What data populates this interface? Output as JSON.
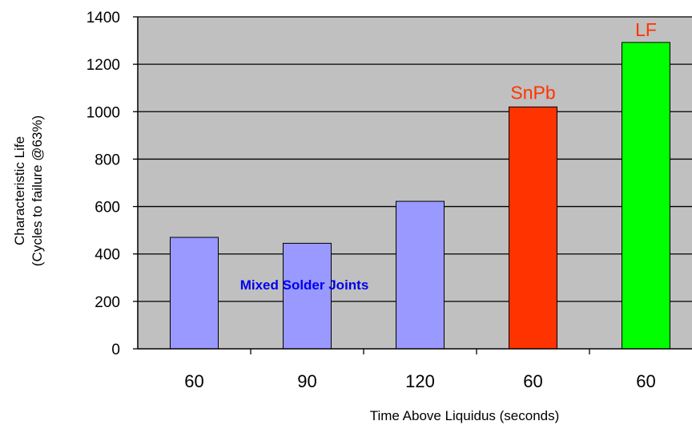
{
  "chart_data": {
    "type": "bar",
    "categories": [
      "60",
      "90",
      "120",
      "60",
      "60"
    ],
    "values": [
      470,
      445,
      622,
      1020,
      1292
    ],
    "colors": [
      "#9999ff",
      "#9999ff",
      "#9999ff",
      "#ff3300",
      "#00ff00"
    ],
    "xlabel": "Time Above Liquidus (seconds)",
    "ylabel_line1": "Characteristic Life",
    "ylabel_line2": "(Cycles to failure @63%)",
    "ylim": [
      0,
      1400
    ],
    "yticks": [
      0,
      200,
      400,
      600,
      800,
      1000,
      1200,
      1400
    ],
    "grid": true,
    "plot_background": "#c0c0c0",
    "annotations": [
      {
        "text": "Mixed Solder Joints",
        "color": "#0000ee",
        "bold": true
      },
      {
        "text": "SnPb",
        "color": "#ff3300",
        "bold": false
      },
      {
        "text": "LF",
        "color": "#ff3300",
        "bold": false
      }
    ]
  }
}
